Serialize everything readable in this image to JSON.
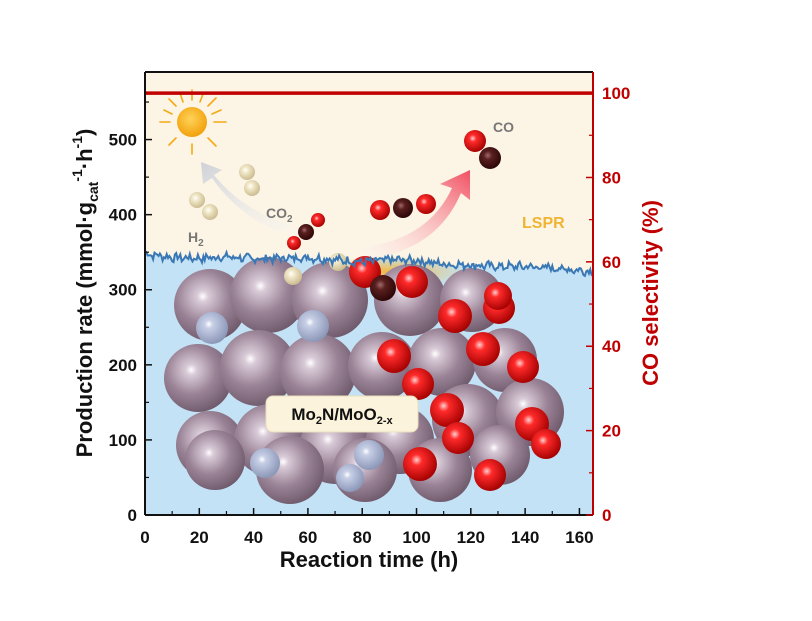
{
  "chart_data": {
    "type": "line",
    "xlabel": "Reaction time (h)",
    "ylabel_left_main": "Production rate (mmol·g",
    "ylabel_left_sub": "cat",
    "ylabel_left_sup1": "-1",
    "ylabel_left_mid": "·h",
    "ylabel_left_sup2": "-1",
    "ylabel_left_end": ")",
    "ylabel_right": "CO selectivity (%)",
    "xlim": [
      0,
      165
    ],
    "ylim_left": [
      0,
      590
    ],
    "ylim_right": [
      0,
      105
    ],
    "x_ticks": [
      "0",
      "20",
      "40",
      "60",
      "80",
      "100",
      "120",
      "140",
      "160"
    ],
    "y_left_ticks": [
      "0",
      "100",
      "200",
      "300",
      "400",
      "500"
    ],
    "y_right_ticks": [
      "0",
      "20",
      "40",
      "60",
      "80",
      "100"
    ],
    "series": [
      {
        "axis": "left",
        "color": "#3a78b5",
        "x": [
          0,
          10,
          20,
          30,
          40,
          50,
          60,
          70,
          80,
          90,
          100,
          110,
          120,
          130,
          140,
          150,
          160,
          165
        ],
        "y": [
          348,
          343,
          342,
          344,
          341,
          342,
          343,
          340,
          337,
          340,
          339,
          334,
          333,
          331,
          331,
          329,
          326,
          324
        ]
      },
      {
        "axis": "right",
        "color": "#c00000",
        "x": [
          0,
          165
        ],
        "y": [
          100,
          100
        ]
      }
    ],
    "annotations": {
      "catalyst": "Mo2N/MoO2-x",
      "catalyst_main1": "Mo",
      "catalyst_sub1": "2",
      "catalyst_main2": "N/MoO",
      "catalyst_sub2": "2-x",
      "h2": "H",
      "h2_sub": "2",
      "co2": "CO",
      "co2_sub": "2",
      "co": "CO",
      "lspr": "LSPR"
    },
    "colors": {
      "upper_background": "#fcf4e4",
      "lower_background": "#c3e2f5",
      "left_axis": "#111111",
      "right_axis": "#c00000",
      "lspr": "#f0b432"
    }
  }
}
